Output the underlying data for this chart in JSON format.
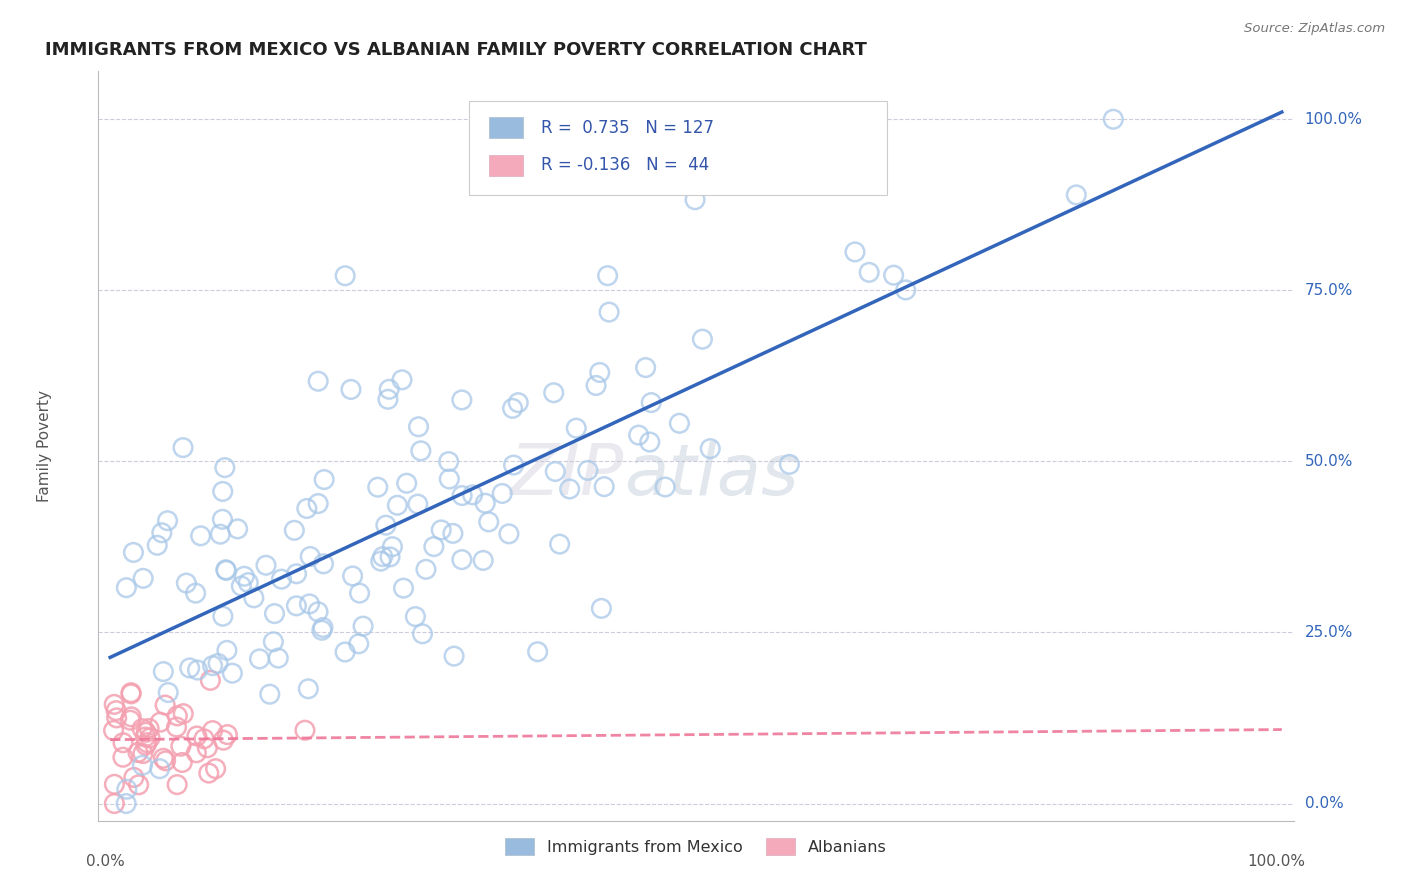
{
  "title": "IMMIGRANTS FROM MEXICO VS ALBANIAN FAMILY POVERTY CORRELATION CHART",
  "source": "Source: ZipAtlas.com",
  "ylabel": "Family Poverty",
  "ytick_vals": [
    0.0,
    0.25,
    0.5,
    0.75,
    1.0
  ],
  "ytick_labels": [
    "0.0%",
    "25.0%",
    "50.0%",
    "75.0%",
    "100.0%"
  ],
  "r_mexico": 0.735,
  "n_mexico": 127,
  "r_albanian": -0.136,
  "n_albanian": 44,
  "blue_scatter_color": "#A8C8E8",
  "pink_scatter_color": "#F4A0B0",
  "blue_line_color": "#3366BB",
  "pink_line_color": "#EE7799",
  "legend_blue": "#99BBDD",
  "legend_pink": "#F4AABB",
  "text_blue": "#3355AA",
  "background_color": "#FFFFFF",
  "grid_color": "#CCCCDD",
  "watermark_color": "#DDDDEE",
  "title_color": "#222222",
  "axis_label_color": "#555555",
  "ytick_color": "#3366BB"
}
